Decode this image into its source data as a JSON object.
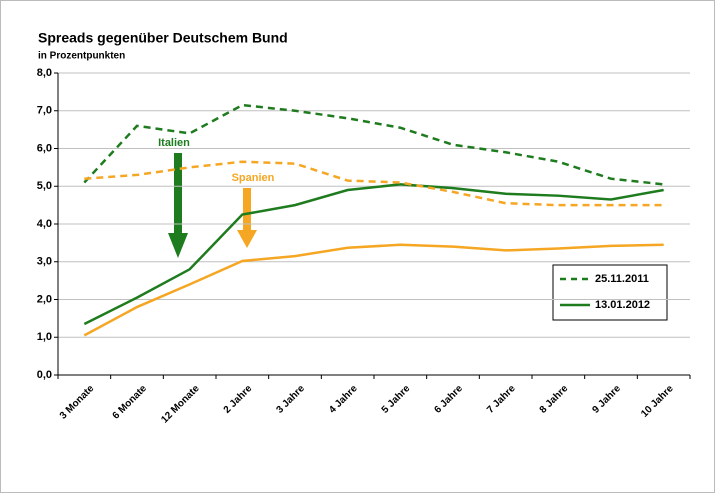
{
  "chart_data": {
    "type": "line",
    "title": "Spreads gegenüber Deutschem Bund",
    "subtitle": "in Prozentpunkten",
    "categories": [
      "3 Monate",
      "6 Monate",
      "12 Monate",
      "2 Jahre",
      "3 Jahre",
      "4 Jahre",
      "5 Jahre",
      "6 Jahre",
      "7 Jahre",
      "8 Jahre",
      "9 Jahre",
      "10 Jahre"
    ],
    "series": [
      {
        "name": "25.11.2011",
        "color": "#1e7b1e",
        "dashed": true,
        "values": [
          5.1,
          6.6,
          6.4,
          7.15,
          7.0,
          6.8,
          6.55,
          6.1,
          5.9,
          5.65,
          5.2,
          5.05
        ]
      },
      {
        "name": "13.01.2012",
        "color": "#1e7b1e",
        "dashed": false,
        "values": [
          1.35,
          2.05,
          2.8,
          4.25,
          4.5,
          4.9,
          5.05,
          4.95,
          4.8,
          4.75,
          4.65,
          4.9
        ]
      },
      {
        "color": "#f5a623",
        "dashed": true,
        "values": [
          5.2,
          5.3,
          5.5,
          5.65,
          5.6,
          5.15,
          5.1,
          4.85,
          4.55,
          4.5,
          4.5,
          4.5
        ]
      },
      {
        "color": "#f5a623",
        "dashed": false,
        "values": [
          1.05,
          1.8,
          2.4,
          3.02,
          3.15,
          3.37,
          3.45,
          3.4,
          3.3,
          3.35,
          3.42,
          3.45
        ]
      }
    ],
    "annotations": [
      "Italien",
      "Spanien"
    ],
    "ylim": [
      0,
      8
    ],
    "yticks": [
      {
        "value": 0,
        "label": "0,0"
      },
      {
        "value": 1,
        "label": "1,0"
      },
      {
        "value": 2,
        "label": "2,0"
      },
      {
        "value": 3,
        "label": "3,0"
      },
      {
        "value": 4,
        "label": "4,0"
      },
      {
        "value": 5,
        "label": "5,0"
      },
      {
        "value": 6,
        "label": "6,0"
      },
      {
        "value": 7,
        "label": "7,0"
      },
      {
        "value": 8,
        "label": "8,0"
      }
    ],
    "grid": true
  }
}
